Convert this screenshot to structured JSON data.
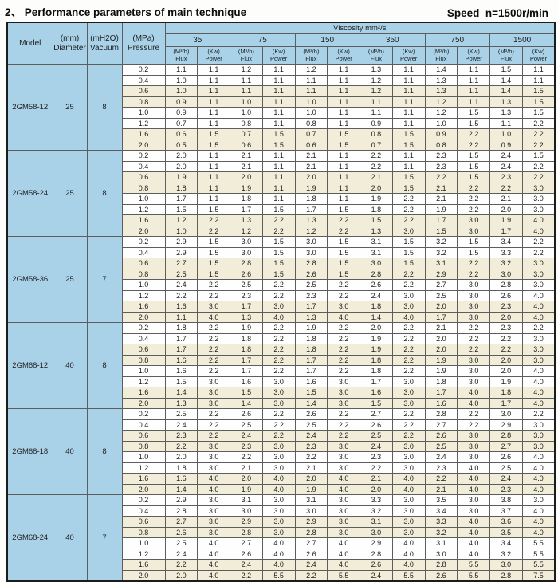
{
  "page": {
    "title": "2、 Performance parameters of main technique",
    "speed": "Speed  n=1500r/min"
  },
  "table": {
    "corner_headers": {
      "model": "Model",
      "diameter_unit": "(mm)",
      "diameter_label": "Diameter",
      "vacuum_unit": "(mH2O)",
      "vacuum_label": "Vacuum",
      "pressure_unit": "(MPa)",
      "pressure_label": "Pressure"
    },
    "viscosity_title": "Viscosity mm²/s",
    "viscosity_values": [
      "35",
      "75",
      "150",
      "350",
      "750",
      "1500"
    ],
    "flux_unit": "(M³/h)",
    "flux_label": "Flux",
    "power_unit": "(Kw)",
    "power_label": "Power",
    "row_columns": [
      "pressure",
      "flux35",
      "power35",
      "flux75",
      "power75",
      "flux150",
      "power150",
      "flux350",
      "power350",
      "flux750",
      "power750",
      "flux1500",
      "power1500"
    ],
    "models": [
      {
        "model": "2GM58-12",
        "diameter": "25",
        "vacuum": "8",
        "rows": [
          [
            "0.2",
            "1.1",
            "1.1",
            "1.2",
            "1.1",
            "1.2",
            "1.1",
            "1.3",
            "1.1",
            "1.4",
            "1.1",
            "1.5",
            "1.1"
          ],
          [
            "0.4",
            "1.0",
            "1.1",
            "1.1",
            "1.1",
            "1.1",
            "1.1",
            "1.2",
            "1.1",
            "1.3",
            "1.1",
            "1.4",
            "1.1"
          ],
          [
            "0.6",
            "1.0",
            "1.1",
            "1.1",
            "1.1",
            "1.1",
            "1.1",
            "1.2",
            "1.1",
            "1.3",
            "1.1",
            "1.4",
            "1.5"
          ],
          [
            "0.8",
            "0.9",
            "1.1",
            "1.0",
            "1.1",
            "1.0",
            "1.1",
            "1.1",
            "1.1",
            "1.2",
            "1.1",
            "1.3",
            "1.5"
          ],
          [
            "1.0",
            "0.9",
            "1.1",
            "1.0",
            "1.1",
            "1.0",
            "1.1",
            "1.1",
            "1.1",
            "1.2",
            "1.5",
            "1.3",
            "1.5"
          ],
          [
            "1.2",
            "0.7",
            "1.1",
            "0.8",
            "1.1",
            "0.8",
            "1.1",
            "0.9",
            "1.1",
            "1.0",
            "1.5",
            "1.1",
            "2.2"
          ],
          [
            "1.6",
            "0.6",
            "1.5",
            "0.7",
            "1.5",
            "0.7",
            "1.5",
            "0.8",
            "1.5",
            "0.9",
            "2.2",
            "1.0",
            "2.2"
          ],
          [
            "2.0",
            "0.5",
            "1.5",
            "0.6",
            "1.5",
            "0.6",
            "1.5",
            "0.7",
            "1.5",
            "0.8",
            "2.2",
            "0.9",
            "2.2"
          ]
        ]
      },
      {
        "model": "2GM58-24",
        "diameter": "25",
        "vacuum": "8",
        "rows": [
          [
            "0.2",
            "2.0",
            "1.1",
            "2.1",
            "1.1",
            "2.1",
            "1.1",
            "2.2",
            "1.1",
            "2.3",
            "1.5",
            "2.4",
            "1.5"
          ],
          [
            "0.4",
            "2.0",
            "1.1",
            "2.1",
            "1.1",
            "2.1",
            "1.1",
            "2.2",
            "1.1",
            "2.3",
            "1.5",
            "2.4",
            "2.2"
          ],
          [
            "0.6",
            "1.9",
            "1.1",
            "2.0",
            "1.1",
            "2.0",
            "1.1",
            "2.1",
            "1.5",
            "2.2",
            "1.5",
            "2.3",
            "2.2"
          ],
          [
            "0.8",
            "1.8",
            "1.1",
            "1.9",
            "1.1",
            "1.9",
            "1.1",
            "2.0",
            "1.5",
            "2.1",
            "2.2",
            "2.2",
            "3.0"
          ],
          [
            "1.0",
            "1.7",
            "1.1",
            "1.8",
            "1.1",
            "1.8",
            "1.1",
            "1.9",
            "2.2",
            "2.1",
            "2.2",
            "2.1",
            "3.0"
          ],
          [
            "1.2",
            "1.5",
            "1.5",
            "1.7",
            "1.5",
            "1.7",
            "1.5",
            "1.8",
            "2.2",
            "1.9",
            "2.2",
            "2.0",
            "3.0"
          ],
          [
            "1.6",
            "1.2",
            "2.2",
            "1.3",
            "2.2",
            "1.3",
            "2.2",
            "1.5",
            "2.2",
            "1.7",
            "3.0",
            "1.9",
            "4.0"
          ],
          [
            "2.0",
            "1.0",
            "2.2",
            "1.2",
            "2.2",
            "1.2",
            "2.2",
            "1.3",
            "3.0",
            "1.5",
            "3.0",
            "1.7",
            "4.0"
          ]
        ]
      },
      {
        "model": "2GM58-36",
        "diameter": "25",
        "vacuum": "7",
        "rows": [
          [
            "0.2",
            "2.9",
            "1.5",
            "3.0",
            "1.5",
            "3.0",
            "1.5",
            "3.1",
            "1.5",
            "3.2",
            "1.5",
            "3.4",
            "2.2"
          ],
          [
            "0.4",
            "2.9",
            "1.5",
            "3.0",
            "1.5",
            "3.0",
            "1.5",
            "3.1",
            "1.5",
            "3.2",
            "1.5",
            "3.3",
            "2.2"
          ],
          [
            "0.6",
            "2.7",
            "1.5",
            "2.8",
            "1.5",
            "2.8",
            "1.5",
            "3.0",
            "1.5",
            "3.1",
            "2.2",
            "3.2",
            "3.0"
          ],
          [
            "0.8",
            "2.5",
            "1.5",
            "2.6",
            "1.5",
            "2.6",
            "1.5",
            "2.8",
            "2.2",
            "2.9",
            "2.2",
            "3.0",
            "3.0"
          ],
          [
            "1.0",
            "2.4",
            "2.2",
            "2.5",
            "2.2",
            "2.5",
            "2.2",
            "2.6",
            "2.2",
            "2.7",
            "3.0",
            "2.8",
            "3.0"
          ],
          [
            "1.2",
            "2.2",
            "2.2",
            "2.3",
            "2.2",
            "2.3",
            "2.2",
            "2.4",
            "3.0",
            "2.5",
            "3.0",
            "2.6",
            "4.0"
          ],
          [
            "1.6",
            "1.6",
            "3.0",
            "1.7",
            "3.0",
            "1.7",
            "3.0",
            "1.8",
            "3.0",
            "2.0",
            "3.0",
            "2.3",
            "4.0"
          ],
          [
            "2.0",
            "1.1",
            "4.0",
            "1.3",
            "4.0",
            "1.3",
            "4.0",
            "1.4",
            "4.0",
            "1.7",
            "3.0",
            "2.0",
            "4.0"
          ]
        ]
      },
      {
        "model": "2GM68-12",
        "diameter": "40",
        "vacuum": "8",
        "rows": [
          [
            "0.2",
            "1.8",
            "2.2",
            "1.9",
            "2.2",
            "1.9",
            "2.2",
            "2.0",
            "2.2",
            "2.1",
            "2.2",
            "2.3",
            "2.2"
          ],
          [
            "0.4",
            "1.7",
            "2.2",
            "1.8",
            "2.2",
            "1.8",
            "2.2",
            "1.9",
            "2.2",
            "2.0",
            "2.2",
            "2.2",
            "3.0"
          ],
          [
            "0.6",
            "1.7",
            "2.2",
            "1.8",
            "2.2",
            "1.8",
            "2.2",
            "1.9",
            "2.2",
            "2.0",
            "2.2",
            "2.2",
            "3.0"
          ],
          [
            "0.8",
            "1.6",
            "2.2",
            "1.7",
            "2.2",
            "1.7",
            "2.2",
            "1.8",
            "2.2",
            "1.9",
            "3.0",
            "2.0",
            "3.0"
          ],
          [
            "1.0",
            "1.6",
            "2.2",
            "1.7",
            "2.2",
            "1.7",
            "2.2",
            "1.8",
            "2.2",
            "1.9",
            "3.0",
            "2.0",
            "4.0"
          ],
          [
            "1.2",
            "1.5",
            "3.0",
            "1.6",
            "3.0",
            "1.6",
            "3.0",
            "1.7",
            "3.0",
            "1.8",
            "3.0",
            "1.9",
            "4.0"
          ],
          [
            "1.6",
            "1.4",
            "3.0",
            "1.5",
            "3.0",
            "1.5",
            "3.0",
            "1.6",
            "3.0",
            "1.7",
            "4.0",
            "1.8",
            "4.0"
          ],
          [
            "2.0",
            "1.3",
            "3.0",
            "1.4",
            "3.0",
            "1.4",
            "3.0",
            "1.5",
            "3.0",
            "1.6",
            "4.0",
            "1.7",
            "4.0"
          ]
        ]
      },
      {
        "model": "2GM68-18",
        "diameter": "40",
        "vacuum": "8",
        "rows": [
          [
            "0.2",
            "2.5",
            "2.2",
            "2.6",
            "2.2",
            "2.6",
            "2.2",
            "2.7",
            "2.2",
            "2.8",
            "2.2",
            "3.0",
            "2.2"
          ],
          [
            "0.4",
            "2.4",
            "2.2",
            "2.5",
            "2.2",
            "2.5",
            "2.2",
            "2.6",
            "2.2",
            "2.7",
            "2.2",
            "2.9",
            "3.0"
          ],
          [
            "0.6",
            "2.3",
            "2.2",
            "2.4",
            "2.2",
            "2.4",
            "2.2",
            "2.5",
            "2.2",
            "2.6",
            "3.0",
            "2.8",
            "3.0"
          ],
          [
            "0.8",
            "2.2",
            "3.0",
            "2.3",
            "3.0",
            "2.3",
            "3.0",
            "2.4",
            "3.0",
            "2.5",
            "3.0",
            "2.7",
            "3.0"
          ],
          [
            "1.0",
            "2.0",
            "3.0",
            "2.2",
            "3.0",
            "2.2",
            "3.0",
            "2.3",
            "3.0",
            "2.4",
            "3.0",
            "2.6",
            "4.0"
          ],
          [
            "1.2",
            "1.8",
            "3.0",
            "2.1",
            "3.0",
            "2.1",
            "3.0",
            "2.2",
            "3.0",
            "2.3",
            "4.0",
            "2.5",
            "4.0"
          ],
          [
            "1.6",
            "1.6",
            "4.0",
            "2.0",
            "4.0",
            "2.0",
            "4.0",
            "2.1",
            "4.0",
            "2.2",
            "4.0",
            "2.4",
            "4.0"
          ],
          [
            "2.0",
            "1.4",
            "4.0",
            "1.9",
            "4.0",
            "1.9",
            "4.0",
            "2.0",
            "4.0",
            "2.1",
            "4.0",
            "2.3",
            "4.0"
          ]
        ]
      },
      {
        "model": "2GM68-24",
        "diameter": "40",
        "vacuum": "7",
        "rows": [
          [
            "0.2",
            "2.9",
            "3.0",
            "3.1",
            "3.0",
            "3.1",
            "3.0",
            "3.3",
            "3.0",
            "3.5",
            "3.0",
            "3.8",
            "3.0"
          ],
          [
            "0.4",
            "2.8",
            "3.0",
            "3.0",
            "3.0",
            "3.0",
            "3.0",
            "3.2",
            "3.0",
            "3.4",
            "3.0",
            "3.7",
            "4.0"
          ],
          [
            "0.6",
            "2.7",
            "3.0",
            "2.9",
            "3.0",
            "2.9",
            "3.0",
            "3.1",
            "3.0",
            "3.3",
            "4.0",
            "3.6",
            "4.0"
          ],
          [
            "0.8",
            "2.6",
            "3.0",
            "2.8",
            "3.0",
            "2.8",
            "3.0",
            "3.0",
            "3.0",
            "3.2",
            "4.0",
            "3.5",
            "4.0"
          ],
          [
            "1.0",
            "2.5",
            "4.0",
            "2.7",
            "4.0",
            "2.7",
            "4.0",
            "2.9",
            "4.0",
            "3.1",
            "4.0",
            "3.4",
            "5.5"
          ],
          [
            "1.2",
            "2.4",
            "4.0",
            "2.6",
            "4.0",
            "2.6",
            "4.0",
            "2.8",
            "4.0",
            "3.0",
            "4.0",
            "3.2",
            "5.5"
          ],
          [
            "1.6",
            "2.2",
            "4.0",
            "2.4",
            "4.0",
            "2.4",
            "4.0",
            "2.6",
            "4.0",
            "2.8",
            "5.5",
            "3.0",
            "5.5"
          ],
          [
            "2.0",
            "2.0",
            "4.0",
            "2.2",
            "5.5",
            "2.2",
            "5.5",
            "2.4",
            "5.5",
            "2.6",
            "5.5",
            "2.8",
            "7.5"
          ]
        ]
      }
    ]
  },
  "colors": {
    "header_blue": "#a9d2e8",
    "stripe_beige": "#f1edd8",
    "row_white": "#fefefe",
    "grid_line": "#5d5d5d",
    "outer_border": "#1c1c1c"
  }
}
